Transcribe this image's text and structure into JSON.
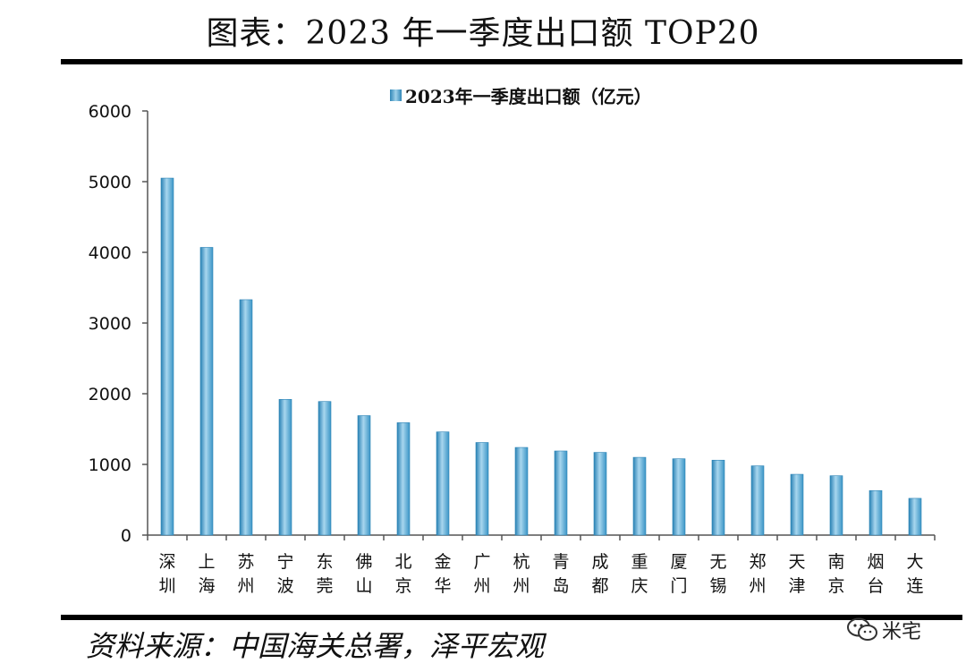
{
  "page": {
    "title": "图表：2023 年一季度出口额 TOP20",
    "source": "资料来源：中国海关总署，泽平宏观",
    "watermark": "米宅"
  },
  "colors": {
    "bar": "#4aa6d4",
    "bar_light": "#a8d6ee",
    "bar_dark": "#2a82b5",
    "axis": "#555555"
  },
  "chart_data": {
    "type": "bar",
    "legend": "2023年一季度出口额（亿元）",
    "legend_position": "top-center",
    "categories": [
      "深圳",
      "上海",
      "苏州",
      "宁波",
      "东莞",
      "佛山",
      "北京",
      "金华",
      "广州",
      "杭州",
      "青岛",
      "成都",
      "重庆",
      "厦门",
      "无锡",
      "郑州",
      "天津",
      "南京",
      "烟台",
      "大连"
    ],
    "category_chars": [
      [
        "深",
        "圳"
      ],
      [
        "上",
        "海"
      ],
      [
        "苏",
        "州"
      ],
      [
        "宁",
        "波"
      ],
      [
        "东",
        "莞"
      ],
      [
        "佛",
        "山"
      ],
      [
        "北",
        "京"
      ],
      [
        "金",
        "华"
      ],
      [
        "广",
        "州"
      ],
      [
        "杭",
        "州"
      ],
      [
        "青",
        "岛"
      ],
      [
        "成",
        "都"
      ],
      [
        "重",
        "庆"
      ],
      [
        "厦",
        "门"
      ],
      [
        "无",
        "锡"
      ],
      [
        "郑",
        "州"
      ],
      [
        "天",
        "津"
      ],
      [
        "南",
        "京"
      ],
      [
        "烟",
        "台"
      ],
      [
        "大",
        "连"
      ]
    ],
    "series": [
      {
        "name": "2023年一季度出口额（亿元）",
        "values": [
          5050,
          4070,
          3330,
          1920,
          1890,
          1690,
          1590,
          1460,
          1310,
          1240,
          1190,
          1170,
          1100,
          1080,
          1060,
          980,
          860,
          840,
          630,
          520
        ]
      }
    ],
    "ylim": [
      0,
      6000
    ],
    "yticks": [
      "0",
      "1000",
      "2000",
      "3000",
      "4000",
      "5000",
      "6000"
    ],
    "grid": false
  }
}
